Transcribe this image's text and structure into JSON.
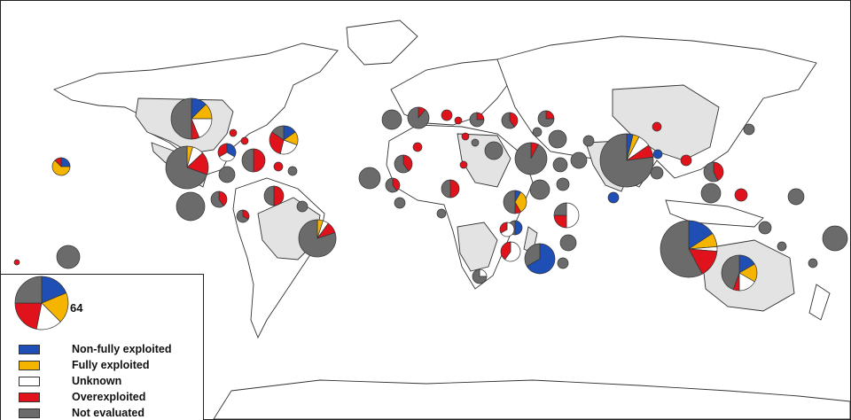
{
  "legend": {
    "scale_label": "64",
    "categories": [
      {
        "key": "nfe",
        "label": "Non-fully exploited",
        "color": "#1f4fb4"
      },
      {
        "key": "fe",
        "label": "Fully exploited",
        "color": "#f5b400"
      },
      {
        "key": "unk",
        "label": "Unknown",
        "color": "#ffffff"
      },
      {
        "key": "oe",
        "label": "Overexploited",
        "color": "#e0121b"
      },
      {
        "key": "ne",
        "label": "Not evaluated",
        "color": "#6b6b6b"
      }
    ]
  },
  "colors": {
    "land": "#ffffff",
    "highlighted_land": "#e3e3e3",
    "border": "#333333"
  },
  "chart_data": {
    "type": "pie",
    "scale_reference": {
      "total": 64,
      "nfe": 12,
      "fe": 12,
      "unk": 10,
      "oe": 14,
      "ne": 16
    }
  }
}
